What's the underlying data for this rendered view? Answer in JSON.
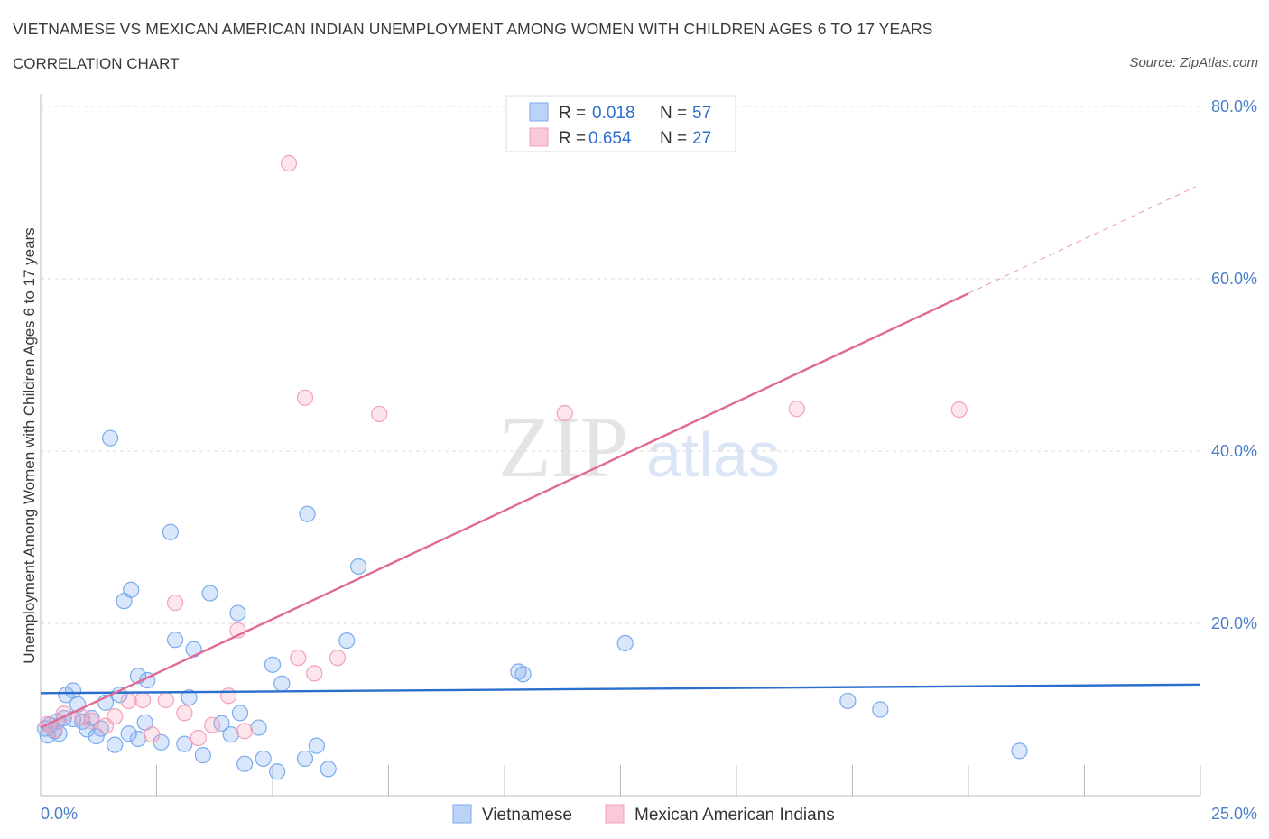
{
  "header": {
    "title": "VIETNAMESE VS MEXICAN AMERICAN INDIAN UNEMPLOYMENT AMONG WOMEN WITH CHILDREN AGES 6 TO 17 YEARS",
    "subtitle": "CORRELATION CHART",
    "source": "Source: ZipAtlas.com"
  },
  "legend": {
    "r_label": "R =",
    "n_label": "N =",
    "entries": [
      {
        "name": "Vietnamese",
        "r": "0.018",
        "n": "57",
        "color": "#7aaaf0"
      },
      {
        "name": "Mexican American Indians",
        "r": "0.654",
        "n": "27",
        "color": "#f4a0b8"
      }
    ]
  },
  "watermark": {
    "zip": "ZIP",
    "atlas": "atlas"
  },
  "chart_data": {
    "type": "scatter",
    "title": "VIETNAMESE VS MEXICAN AMERICAN INDIAN UNEMPLOYMENT AMONG WOMEN WITH CHILDREN AGES 6 TO 17 YEARS",
    "xlabel": "",
    "ylabel": "Unemployment Among Women with Children Ages 6 to 17 years",
    "xlim": [
      0,
      25
    ],
    "ylim": [
      0,
      80
    ],
    "x_tick_labels": [
      "0.0%",
      "25.0%"
    ],
    "y_tick_values": [
      20,
      40,
      60,
      80
    ],
    "y_tick_labels": [
      "20.0%",
      "40.0%",
      "60.0%",
      "80.0%"
    ],
    "grid": true,
    "series": [
      {
        "name": "Vietnamese",
        "color": "#7aaaf0",
        "line_color": "#2a6fce",
        "trend": {
          "x": [
            0,
            25
          ],
          "y": [
            11.9,
            12.9
          ]
        },
        "points": [
          [
            0.1,
            7.8
          ],
          [
            0.2,
            8.2
          ],
          [
            0.3,
            7.5
          ],
          [
            0.35,
            8.6
          ],
          [
            0.4,
            7.2
          ],
          [
            0.5,
            9.0
          ],
          [
            0.55,
            11.7
          ],
          [
            0.7,
            12.2
          ],
          [
            0.7,
            8.9
          ],
          [
            0.8,
            10.6
          ],
          [
            0.9,
            8.6
          ],
          [
            1.0,
            7.7
          ],
          [
            1.1,
            9.0
          ],
          [
            1.2,
            6.9
          ],
          [
            1.3,
            7.8
          ],
          [
            1.4,
            10.8
          ],
          [
            1.5,
            41.5
          ],
          [
            1.6,
            5.9
          ],
          [
            1.7,
            11.7
          ],
          [
            1.8,
            22.6
          ],
          [
            1.9,
            7.2
          ],
          [
            1.95,
            23.9
          ],
          [
            2.1,
            6.6
          ],
          [
            2.1,
            13.9
          ],
          [
            2.25,
            8.5
          ],
          [
            2.3,
            13.4
          ],
          [
            2.6,
            6.2
          ],
          [
            2.8,
            30.6
          ],
          [
            2.9,
            18.1
          ],
          [
            3.1,
            6.0
          ],
          [
            3.2,
            11.4
          ],
          [
            3.3,
            17.0
          ],
          [
            3.5,
            4.7
          ],
          [
            3.65,
            23.5
          ],
          [
            3.9,
            8.4
          ],
          [
            4.1,
            7.1
          ],
          [
            4.25,
            21.2
          ],
          [
            4.3,
            9.6
          ],
          [
            4.4,
            3.7
          ],
          [
            4.7,
            7.9
          ],
          [
            4.8,
            4.3
          ],
          [
            5.0,
            15.2
          ],
          [
            5.1,
            2.8
          ],
          [
            5.2,
            13.0
          ],
          [
            5.7,
            4.3
          ],
          [
            5.75,
            32.7
          ],
          [
            5.95,
            5.8
          ],
          [
            6.2,
            3.1
          ],
          [
            6.6,
            18.0
          ],
          [
            6.85,
            26.6
          ],
          [
            10.3,
            14.4
          ],
          [
            10.4,
            14.1
          ],
          [
            12.6,
            17.7
          ],
          [
            17.4,
            11.0
          ],
          [
            18.1,
            10.0
          ],
          [
            21.1,
            5.2
          ],
          [
            0.15,
            7.0
          ]
        ]
      },
      {
        "name": "Mexican American Indians",
        "color": "#f4a0b8",
        "line_color": "#e06a94",
        "trend": {
          "x": [
            0,
            20
          ],
          "y": [
            7.9,
            58.3
          ]
        },
        "trend_extension": {
          "x": [
            20,
            24.9
          ],
          "y": [
            58.3,
            70.7
          ]
        },
        "points": [
          [
            0.15,
            8.3
          ],
          [
            0.3,
            7.7
          ],
          [
            0.5,
            9.5
          ],
          [
            0.9,
            9.1
          ],
          [
            1.1,
            8.7
          ],
          [
            1.4,
            8.1
          ],
          [
            1.6,
            9.2
          ],
          [
            1.9,
            11.0
          ],
          [
            2.2,
            11.1
          ],
          [
            2.4,
            7.1
          ],
          [
            2.7,
            11.1
          ],
          [
            2.9,
            22.4
          ],
          [
            3.1,
            9.6
          ],
          [
            3.4,
            6.7
          ],
          [
            3.7,
            8.2
          ],
          [
            4.05,
            11.6
          ],
          [
            4.25,
            19.2
          ],
          [
            4.4,
            7.5
          ],
          [
            5.35,
            73.4
          ],
          [
            5.55,
            16.0
          ],
          [
            5.7,
            46.2
          ],
          [
            5.9,
            14.2
          ],
          [
            6.4,
            16.0
          ],
          [
            7.3,
            44.3
          ],
          [
            11.3,
            44.4
          ],
          [
            16.3,
            44.9
          ],
          [
            19.8,
            44.8
          ]
        ]
      }
    ]
  }
}
